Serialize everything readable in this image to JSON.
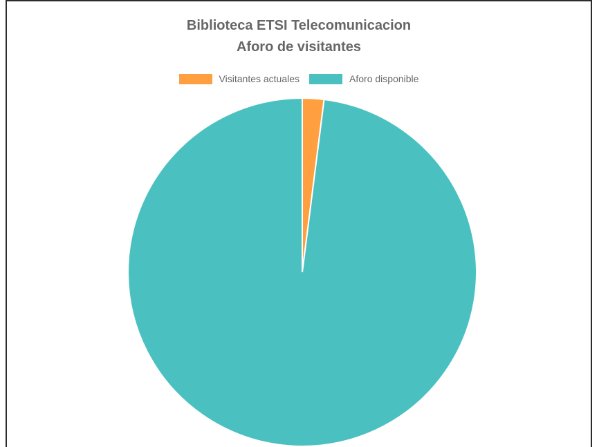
{
  "chart_data": {
    "type": "pie",
    "title": [
      "Biblioteca ETSI Telecomunicacion",
      "Aforo de visitantes"
    ],
    "legend_position": "top",
    "categories": [
      "Visitantes actuales",
      "Aforo disponible"
    ],
    "values": [
      2,
      98
    ],
    "colors": [
      "#ff9f40",
      "#4bc0c0"
    ],
    "slice_border_color": "#ffffff"
  }
}
